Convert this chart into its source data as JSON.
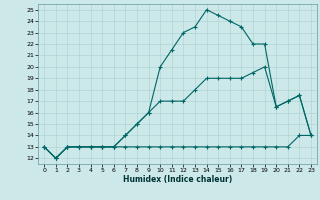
{
  "xlabel": "Humidex (Indice chaleur)",
  "ylabel": "",
  "bg_color": "#cce8e8",
  "line_color": "#006666",
  "grid_color": "#b0d4d4",
  "xlim": [
    -0.5,
    23.5
  ],
  "ylim": [
    11.5,
    25.5
  ],
  "xticks": [
    0,
    1,
    2,
    3,
    4,
    5,
    6,
    7,
    8,
    9,
    10,
    11,
    12,
    13,
    14,
    15,
    16,
    17,
    18,
    19,
    20,
    21,
    22,
    23
  ],
  "yticks": [
    12,
    13,
    14,
    15,
    16,
    17,
    18,
    19,
    20,
    21,
    22,
    23,
    24,
    25
  ],
  "line1_x": [
    0,
    1,
    2,
    3,
    4,
    5,
    6,
    7,
    8,
    9,
    10,
    11,
    12,
    13,
    14,
    15,
    16,
    17,
    18,
    19,
    20,
    21,
    22,
    23
  ],
  "line1_y": [
    13,
    12,
    13,
    13,
    13,
    13,
    13,
    13,
    13,
    13,
    13,
    13,
    13,
    13,
    13,
    13,
    13,
    13,
    13,
    13,
    13,
    13,
    14,
    14
  ],
  "line2_x": [
    0,
    1,
    2,
    3,
    4,
    5,
    6,
    7,
    8,
    9,
    10,
    11,
    12,
    13,
    14,
    15,
    16,
    17,
    18,
    19,
    20,
    21,
    22,
    23
  ],
  "line2_y": [
    13,
    12,
    13,
    13,
    13,
    13,
    13,
    14,
    15,
    16,
    17,
    17,
    17,
    18,
    19,
    19,
    19,
    19,
    19.5,
    20,
    16.5,
    17,
    17.5,
    14
  ],
  "line3_x": [
    0,
    1,
    2,
    3,
    4,
    5,
    6,
    7,
    8,
    9,
    10,
    11,
    12,
    13,
    14,
    15,
    16,
    17,
    18,
    19,
    20,
    21,
    22,
    23
  ],
  "line3_y": [
    13,
    12,
    13,
    13,
    13,
    13,
    13,
    14,
    15,
    16,
    20,
    21.5,
    23,
    23.5,
    25,
    24.5,
    24,
    23.5,
    22,
    22,
    16.5,
    17,
    17.5,
    14
  ]
}
